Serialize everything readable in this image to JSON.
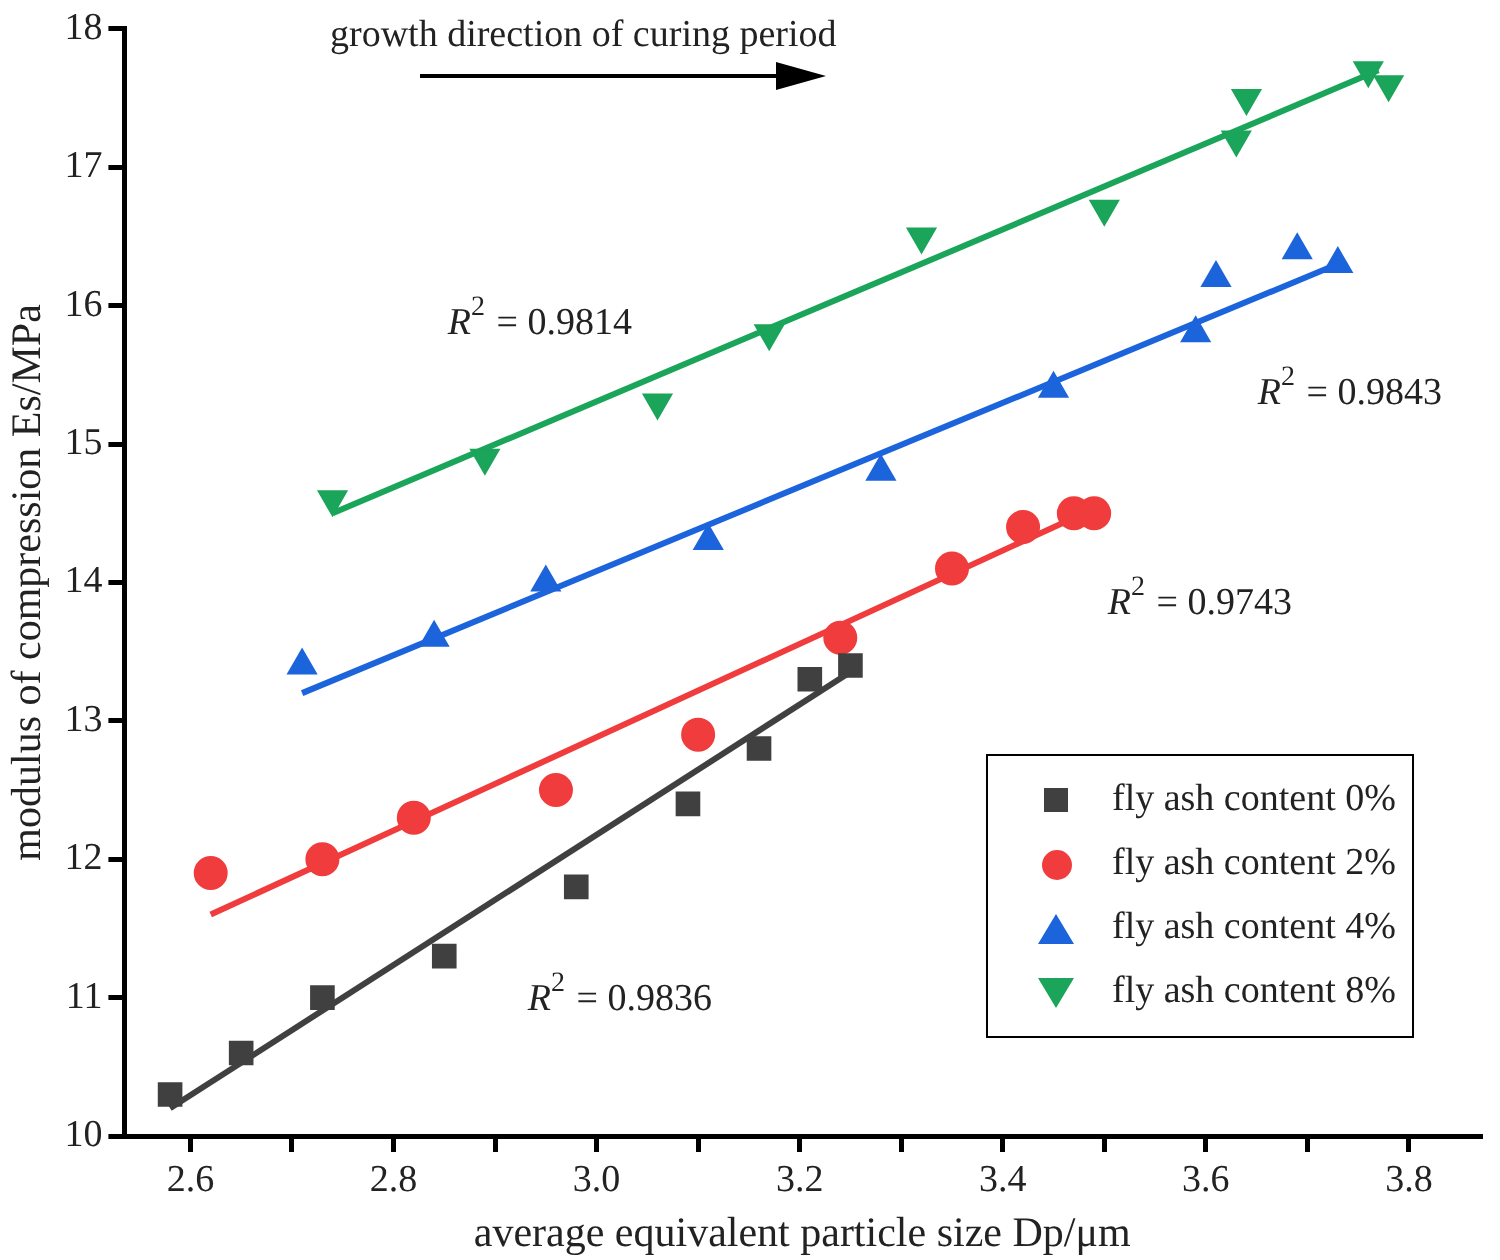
{
  "chart_data": {
    "type": "scatter",
    "xlabel": "average equivalent particle size Dp/μm",
    "ylabel": "modulus of compression Es/MPa",
    "xlim": [
      2.535,
      3.87
    ],
    "ylim": [
      10,
      18
    ],
    "xticks": [
      {
        "value": 2.6,
        "label": "2.6"
      },
      {
        "value": 2.7,
        "label": null
      },
      {
        "value": 2.8,
        "label": "2.8"
      },
      {
        "value": 2.9,
        "label": null
      },
      {
        "value": 3,
        "label": "3.0"
      },
      {
        "value": 3.1,
        "label": null
      },
      {
        "value": 3.2,
        "label": "3.2"
      },
      {
        "value": 3.3,
        "label": null
      },
      {
        "value": 3.4,
        "label": "3.4"
      },
      {
        "value": 3.5,
        "label": null
      },
      {
        "value": 3.6,
        "label": "3.6"
      },
      {
        "value": 3.7,
        "label": null
      },
      {
        "value": 3.8,
        "label": "3.8"
      }
    ],
    "yticks": [
      10,
      11,
      12,
      13,
      14,
      15,
      16,
      17,
      18
    ],
    "grid": false,
    "legend": "bottom right",
    "series": [
      {
        "name": "fly ash content 0%",
        "color": "#404040",
        "marker": "square",
        "x": [
          2.58,
          2.65,
          2.73,
          2.85,
          2.98,
          3.09,
          3.16,
          3.21,
          3.25
        ],
        "values": [
          10.3,
          10.6,
          11.0,
          11.3,
          11.8,
          12.4,
          12.8,
          13.3,
          13.4
        ]
      },
      {
        "name": "fly ash content 2%",
        "color": "#f03c3c",
        "marker": "circle",
        "x": [
          2.62,
          2.73,
          2.82,
          2.96,
          3.1,
          3.24,
          3.35,
          3.42,
          3.47,
          3.49
        ],
        "values": [
          11.9,
          12.0,
          12.3,
          12.5,
          12.9,
          13.6,
          14.1,
          14.4,
          14.5,
          14.5
        ]
      },
      {
        "name": "fly ash content 4%",
        "color": "#1c64dc",
        "marker": "triangle",
        "x": [
          2.71,
          2.84,
          2.95,
          3.11,
          3.28,
          3.45,
          3.59,
          3.61,
          3.69,
          3.73
        ],
        "values": [
          13.4,
          13.6,
          14.0,
          14.3,
          14.8,
          15.4,
          15.8,
          16.2,
          16.4,
          16.3
        ]
      },
      {
        "name": "fly ash content 8%",
        "color": "#1aa55a",
        "marker": "triangle-down",
        "x": [
          2.74,
          2.89,
          3.06,
          3.17,
          3.32,
          3.5,
          3.63,
          3.64,
          3.76,
          3.78
        ],
        "values": [
          14.6,
          14.9,
          15.3,
          15.8,
          16.5,
          16.7,
          17.2,
          17.5,
          17.7,
          17.6
        ]
      },
      {
        "type": "line",
        "color": "#404040",
        "marker": "none",
        "x": [
          2.58,
          3.26
        ],
        "values": [
          10.2,
          13.4
        ]
      },
      {
        "type": "line",
        "color": "#f03c3c",
        "marker": "none",
        "x": [
          2.62,
          3.48
        ],
        "values": [
          11.6,
          14.5
        ]
      },
      {
        "type": "line",
        "color": "#1c64dc",
        "marker": "none",
        "x": [
          2.71,
          3.73
        ],
        "values": [
          13.2,
          16.3
        ]
      },
      {
        "type": "line",
        "color": "#1aa55a",
        "marker": "none",
        "x": [
          2.74,
          3.77
        ],
        "values": [
          14.5,
          17.7
        ]
      }
    ],
    "annotations": [
      "growth direction of curing period",
      "R$^{2}$ = 0.9814",
      "R$^{2}$ = 0.9843",
      "R$^{2}$ = 0.9743",
      "R$^{2}$ = 0.9836"
    ]
  }
}
